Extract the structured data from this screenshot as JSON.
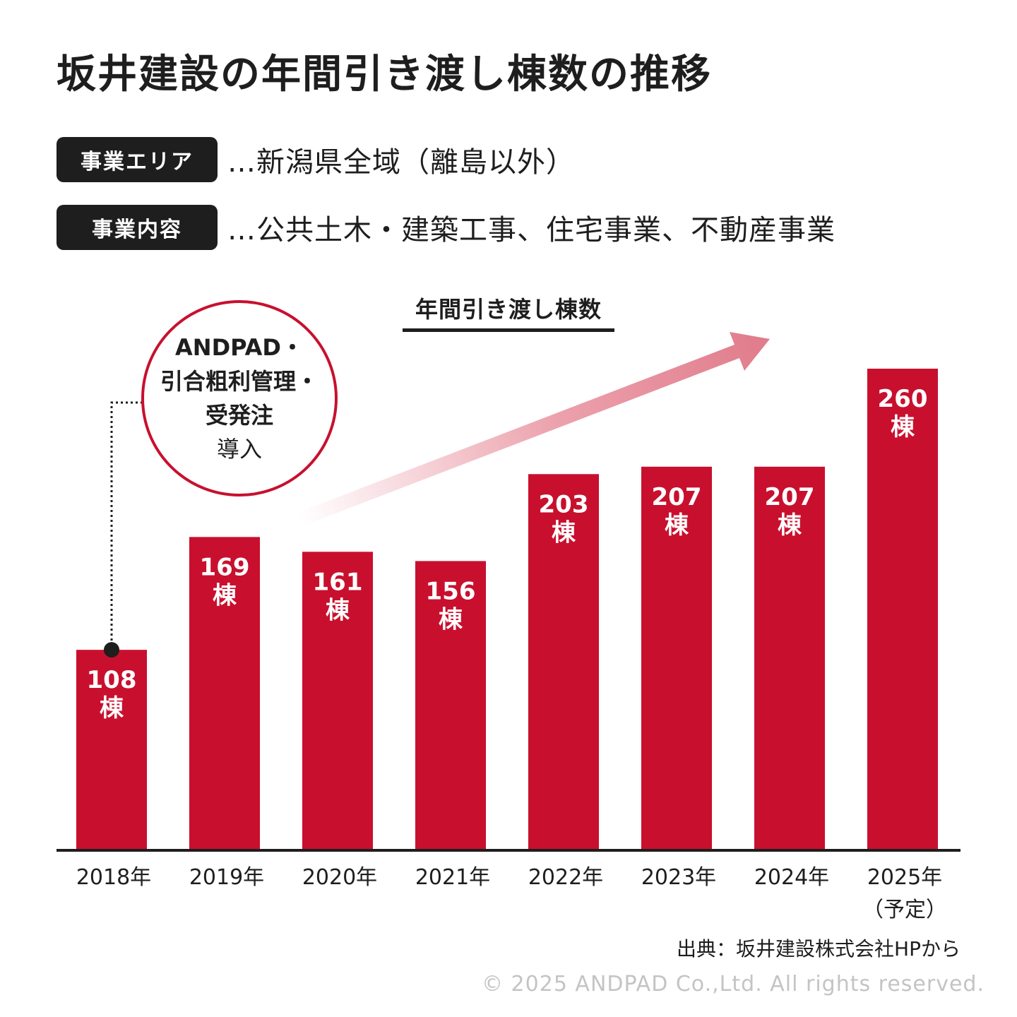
{
  "title": "坂井建設の年間引き渡し棟数の推移",
  "info": [
    {
      "tag": "事業エリア",
      "text": "…新潟県全域（離島以外）"
    },
    {
      "tag": "事業内容",
      "text": "…公共土木・建築工事、住宅事業、不動産事業"
    }
  ],
  "callout": {
    "lines_bold": [
      "ANDPAD・",
      "引合粗利管理・",
      "受発注"
    ],
    "line_normal": "導入"
  },
  "source": "出典：坂井建設株式会社HPから",
  "copyright": "© 2025 ANDPAD Co.,Ltd. All rights reserved.",
  "colors": {
    "bar": "#c8102e",
    "text_dark": "#1e1e1e",
    "copyright": "#c4c4c4"
  },
  "chart_data": {
    "type": "bar",
    "title": "年間引き渡し棟数",
    "categories": [
      "2018年",
      "2019年",
      "2020年",
      "2021年",
      "2022年",
      "2023年",
      "2024年",
      "2025年"
    ],
    "category_notes": [
      "",
      "",
      "",
      "",
      "",
      "",
      "",
      "（予定）"
    ],
    "values": [
      108,
      169,
      161,
      156,
      203,
      207,
      207,
      260
    ],
    "value_unit": "棟",
    "ylim": [
      0,
      265
    ],
    "grid": false,
    "legend": "none",
    "annotation": "trend-arrow-up"
  }
}
